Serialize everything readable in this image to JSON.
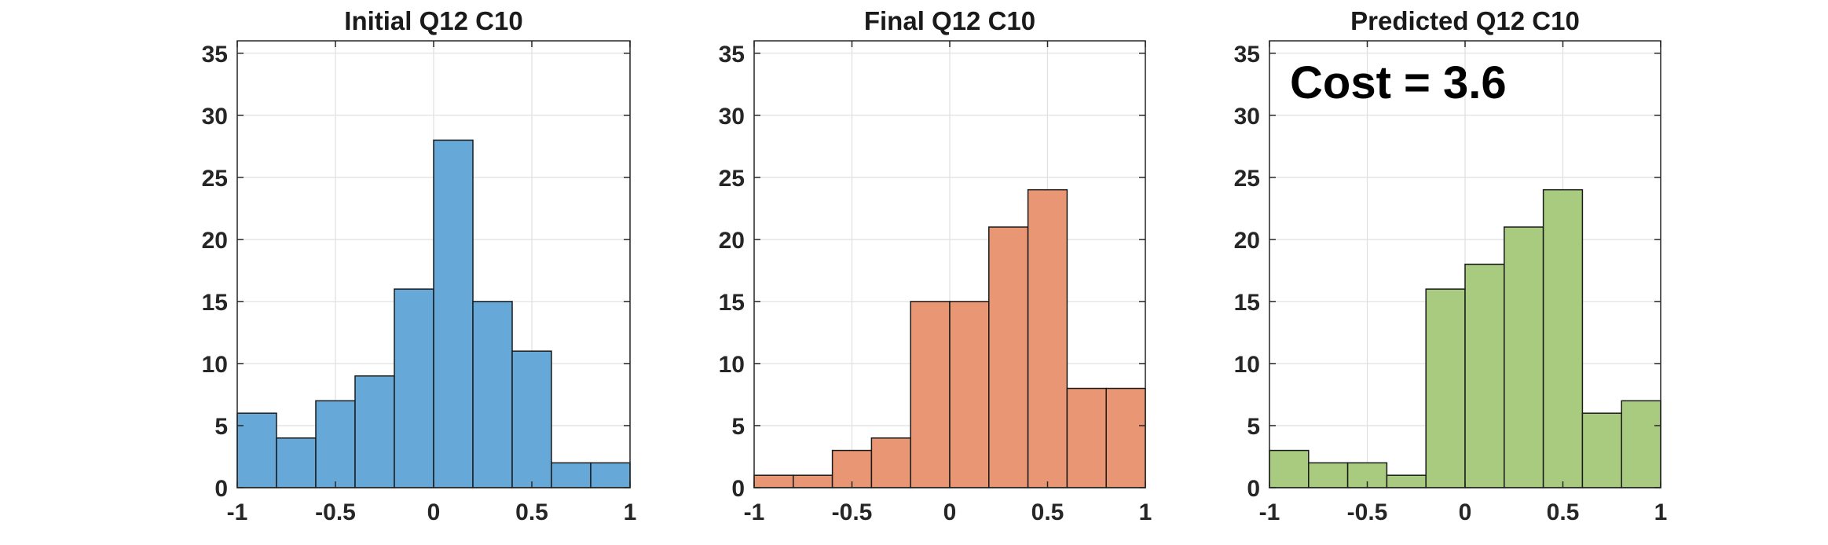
{
  "chart_data": [
    {
      "type": "bar",
      "title": "Initial Q12 C10",
      "color": "#66a9d8",
      "bin_edges": [
        -1,
        -0.8,
        -0.6,
        -0.4,
        -0.2,
        0,
        0.2,
        0.4,
        0.6,
        0.8,
        1
      ],
      "values": [
        6,
        4,
        7,
        9,
        16,
        28,
        15,
        11,
        2,
        2
      ],
      "xlim": [
        -1,
        1
      ],
      "ylim": [
        0,
        36
      ],
      "xticks": [
        -1,
        -0.5,
        0,
        0.5,
        1
      ],
      "xtick_labels": [
        "-1",
        "-0.5",
        "0",
        "0.5",
        "1"
      ],
      "yticks": [
        0,
        5,
        10,
        15,
        20,
        25,
        30,
        35
      ],
      "ytick_labels": [
        "0",
        "5",
        "10",
        "15",
        "20",
        "25",
        "30",
        "35"
      ],
      "grid": true,
      "annotation": ""
    },
    {
      "type": "bar",
      "title": "Final Q12 C10",
      "color": "#e99674",
      "bin_edges": [
        -1,
        -0.8,
        -0.6,
        -0.4,
        -0.2,
        0,
        0.2,
        0.4,
        0.6,
        0.8,
        1
      ],
      "values": [
        1,
        1,
        3,
        4,
        15,
        15,
        21,
        24,
        8,
        8
      ],
      "xlim": [
        -1,
        1
      ],
      "ylim": [
        0,
        36
      ],
      "xticks": [
        -1,
        -0.5,
        0,
        0.5,
        1
      ],
      "xtick_labels": [
        "-1",
        "-0.5",
        "0",
        "0.5",
        "1"
      ],
      "yticks": [
        0,
        5,
        10,
        15,
        20,
        25,
        30,
        35
      ],
      "ytick_labels": [
        "0",
        "5",
        "10",
        "15",
        "20",
        "25",
        "30",
        "35"
      ],
      "grid": true,
      "annotation": ""
    },
    {
      "type": "bar",
      "title": "Predicted Q12 C10",
      "color": "#a8cb7f",
      "bin_edges": [
        -1,
        -0.8,
        -0.6,
        -0.4,
        -0.2,
        0,
        0.2,
        0.4,
        0.6,
        0.8,
        1
      ],
      "values": [
        3,
        2,
        2,
        1,
        16,
        18,
        21,
        24,
        6,
        7
      ],
      "xlim": [
        -1,
        1
      ],
      "ylim": [
        0,
        36
      ],
      "xticks": [
        -1,
        -0.5,
        0,
        0.5,
        1
      ],
      "xtick_labels": [
        "-1",
        "-0.5",
        "0",
        "0.5",
        "1"
      ],
      "yticks": [
        0,
        5,
        10,
        15,
        20,
        25,
        30,
        35
      ],
      "ytick_labels": [
        "0",
        "5",
        "10",
        "15",
        "20",
        "25",
        "30",
        "35"
      ],
      "grid": true,
      "annotation": "Cost = 3.6"
    }
  ]
}
